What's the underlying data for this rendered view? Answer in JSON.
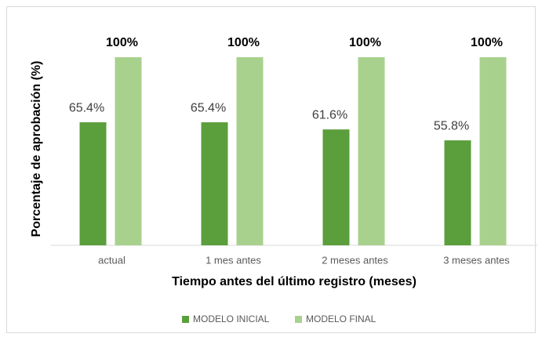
{
  "chart_data": {
    "type": "bar",
    "y_label": "Porcentaje de aprobación (%)",
    "x_label": "Tiempo antes del último registro (meses)",
    "categories": [
      "actual",
      "1 mes antes",
      "2 meses antes",
      "3 meses antes"
    ],
    "series": [
      {
        "name": "MODELO INICIAL",
        "color": "#5b9e3c",
        "values": [
          65.4,
          65.4,
          61.6,
          55.8
        ],
        "value_labels": [
          "65.4%",
          "65.4%",
          "61.6%",
          "55.8%"
        ]
      },
      {
        "name": "MODELO FINAL",
        "color": "#a9d18e",
        "values": [
          100,
          100,
          100,
          100
        ],
        "value_labels": [
          "100%",
          "100%",
          "100%",
          "100%"
        ]
      }
    ],
    "ylim": [
      0,
      100
    ],
    "legend": "bottom"
  }
}
